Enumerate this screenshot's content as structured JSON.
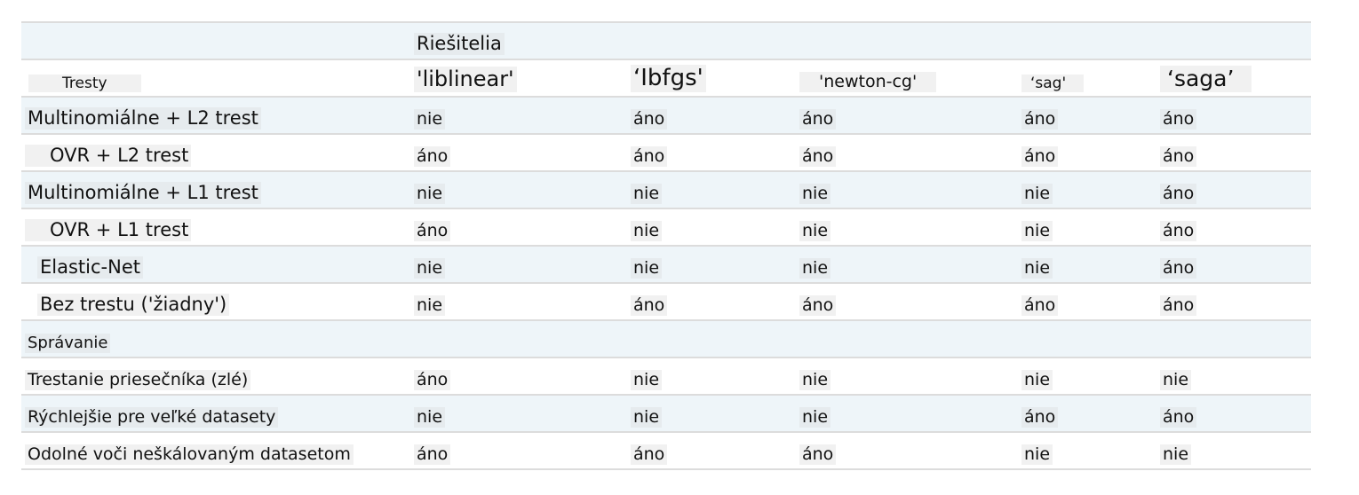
{
  "header": {
    "group_label": "Riešitelia",
    "penalties_label": "Tresty",
    "solvers": [
      "'liblinear'",
      "‘Ibfgs'",
      "'newton-cg'",
      "‘sag'",
      "‘saga’"
    ]
  },
  "rows": [
    {
      "label": "Multinomiálne + L2 trest",
      "values": [
        "nie",
        "áno",
        "áno",
        "áno",
        "áno"
      ]
    },
    {
      "label": "OVR + L2 trest",
      "values": [
        "áno",
        "áno",
        "áno",
        "áno",
        "áno"
      ]
    },
    {
      "label": "Multinomiálne + L1 trest",
      "values": [
        "nie",
        "nie",
        "nie",
        "nie",
        "áno"
      ]
    },
    {
      "label": "OVR + L1 trest",
      "values": [
        "áno",
        "nie",
        "nie",
        "nie",
        "áno"
      ]
    },
    {
      "label": "Elastic-Net",
      "values": [
        "nie",
        "nie",
        "nie",
        "nie",
        "áno"
      ]
    },
    {
      "label": "Bez trestu ('žiadny')",
      "values": [
        "nie",
        "áno",
        "áno",
        "áno",
        "áno"
      ]
    }
  ],
  "behavior_label": "Správanie",
  "behavior_rows": [
    {
      "label": "Trestanie priesečníka (zlé)",
      "values": [
        "áno",
        "nie",
        "nie",
        "nie",
        "nie"
      ]
    },
    {
      "label": "Rýchlejšie pre veľké datasety",
      "values": [
        "nie",
        "nie",
        "nie",
        "áno",
        "áno"
      ]
    },
    {
      "label": "Odolné voči neškálovaným datasetom",
      "values": [
        "áno",
        "áno",
        "áno",
        "nie",
        "nie"
      ]
    }
  ]
}
